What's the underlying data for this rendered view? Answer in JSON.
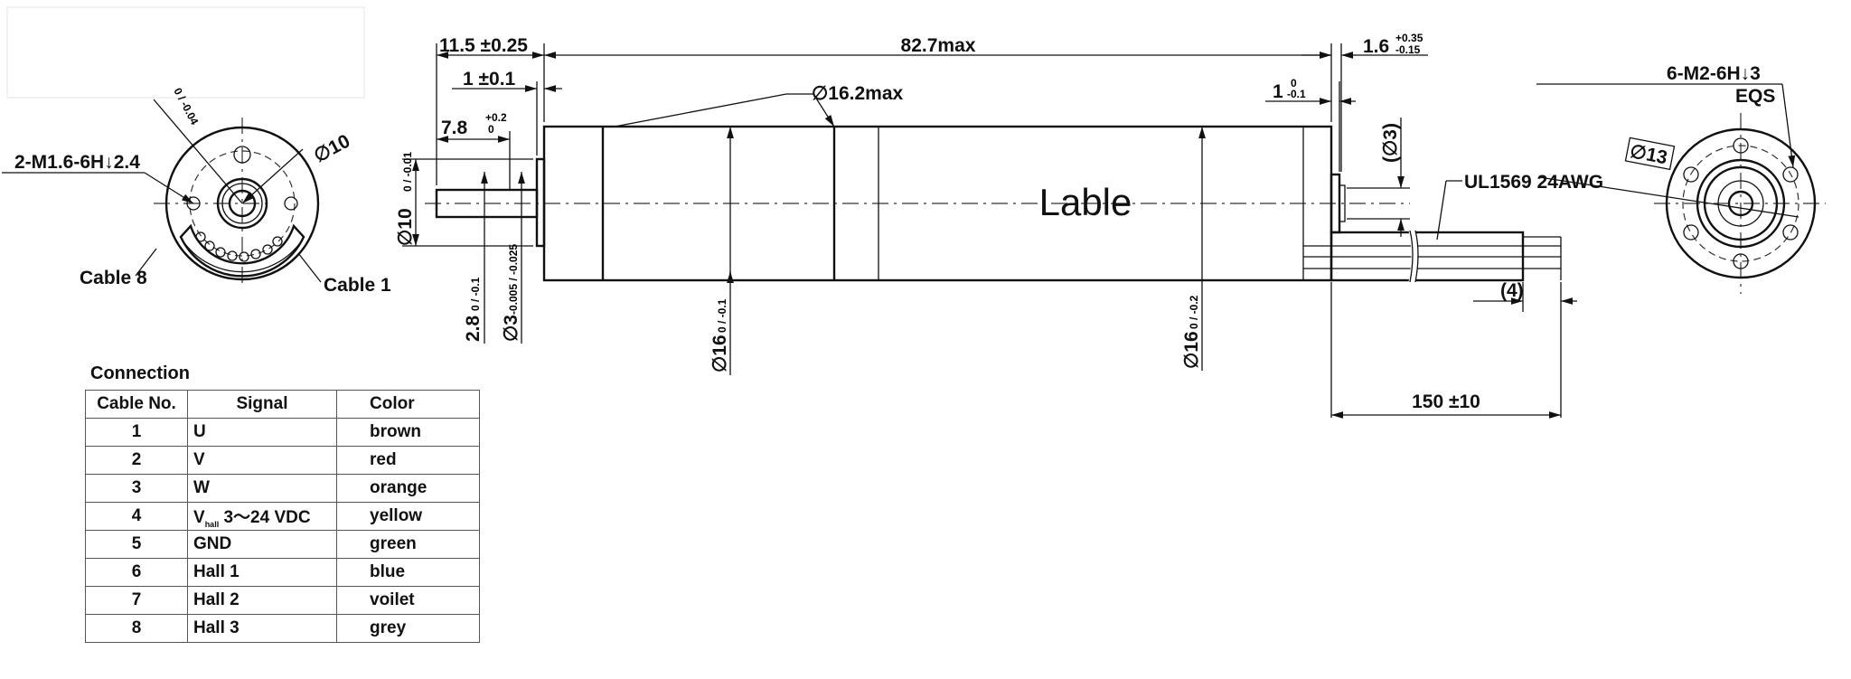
{
  "side_view": {
    "label": "Lable",
    "dims": {
      "overall": "11.5 ±0.25",
      "body_length": "82.7max",
      "rear_boss": "1.6",
      "rear_boss_tol_upper": "+0.35",
      "rear_boss_tol_lower": "-0.15",
      "flange": "1 ±0.1",
      "shaft_length": "7.8",
      "shaft_length_tol_upper": "+0.2",
      "shaft_length_tol_lower": "0",
      "gear_dia": "∅16.2max",
      "rear_cap": "1",
      "rear_cap_tol_upper": "0",
      "rear_cap_tol_lower": "-0.1",
      "cable_dia": "(∅3)",
      "cable_spec": "UL1569 24AWG",
      "strip_length": "(4)",
      "cable_length": "150 ±10",
      "pilot_dia": "∅10",
      "pilot_tol": "0 / -0.01",
      "flat": "2.8",
      "flat_tol": "0 / -0.1",
      "shaft_dia": "∅3",
      "shaft_tol": "-0.005 / -0.025",
      "body_dia_front": "∅16",
      "body_dia_front_tol": "0 / -0.1",
      "body_dia_rear": "∅16",
      "body_dia_rear_tol": "0 / -0.2"
    }
  },
  "front_view": {
    "thread_note": "2-M1.6-6H↓2.4",
    "pcd": "∅10",
    "angle_tol": "0 / -0.04",
    "cable8": "Cable 8",
    "cable1": "Cable 1"
  },
  "rear_view": {
    "thread_note": "6-M2-6H↓3",
    "eqs": "EQS",
    "pcd": "∅13"
  },
  "connection": {
    "title": "Connection",
    "headers": [
      "Cable No.",
      "Signal",
      "Color"
    ],
    "rows": [
      {
        "no": "1",
        "signal": "U",
        "color": "brown"
      },
      {
        "no": "2",
        "signal": "V",
        "color": "red"
      },
      {
        "no": "3",
        "signal": "W",
        "color": "orange"
      },
      {
        "no": "4",
        "signal": "V",
        "signal_sub": "hall",
        "signal_rest": " 3～24 VDC",
        "color": "yellow"
      },
      {
        "no": "5",
        "signal": "GND",
        "color": "green"
      },
      {
        "no": "6",
        "signal": "Hall 1",
        "color": "blue"
      },
      {
        "no": "7",
        "signal": "Hall 2",
        "color": "voilet"
      },
      {
        "no": "8",
        "signal": "Hall 3",
        "color": "grey"
      }
    ]
  }
}
